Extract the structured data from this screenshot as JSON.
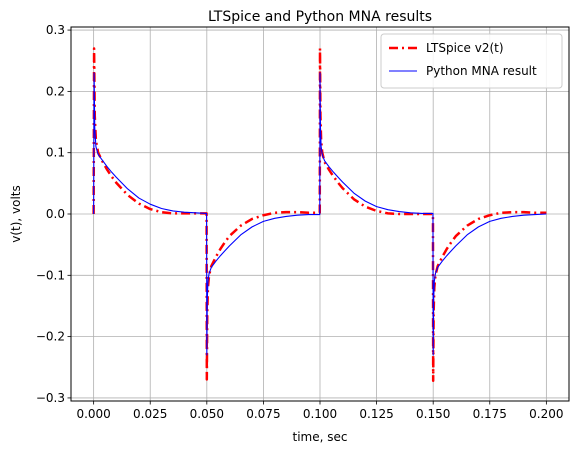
{
  "chart_data": {
    "type": "line",
    "title": "LTSpice and Python MNA results",
    "xlabel": "time, sec",
    "ylabel": "v(t), volts",
    "xlim": [
      -0.01,
      0.21
    ],
    "ylim": [
      -0.305,
      0.305
    ],
    "xticks": [
      0.0,
      0.025,
      0.05,
      0.075,
      0.1,
      0.125,
      0.15,
      0.175,
      0.2
    ],
    "xtick_labels": [
      "0.000",
      "0.025",
      "0.050",
      "0.075",
      "0.100",
      "0.125",
      "0.150",
      "0.175",
      "0.200"
    ],
    "yticks": [
      -0.3,
      -0.2,
      -0.1,
      0.0,
      0.1,
      0.2,
      0.3
    ],
    "ytick_labels": [
      "−0.3",
      "−0.2",
      "−0.1",
      "0.0",
      "0.1",
      "0.2",
      "0.3"
    ],
    "grid": true,
    "legend_position": "top-right",
    "series": [
      {
        "name": "LTSpice v2(t)",
        "color": "#ff0000",
        "style": "dashdot",
        "x": [
          0.0,
          0.0002,
          0.0005,
          0.001,
          0.002,
          0.004,
          0.006,
          0.008,
          0.01,
          0.015,
          0.02,
          0.025,
          0.03,
          0.035,
          0.04,
          0.045,
          0.0499,
          0.05,
          0.0502,
          0.0505,
          0.051,
          0.052,
          0.054,
          0.056,
          0.058,
          0.06,
          0.065,
          0.07,
          0.075,
          0.08,
          0.085,
          0.09,
          0.095,
          0.0999,
          0.1,
          0.1002,
          0.1005,
          0.101,
          0.102,
          0.104,
          0.106,
          0.108,
          0.11,
          0.115,
          0.12,
          0.125,
          0.13,
          0.135,
          0.14,
          0.145,
          0.1499,
          0.15,
          0.1502,
          0.1505,
          0.151,
          0.152,
          0.154,
          0.156,
          0.158,
          0.16,
          0.165,
          0.17,
          0.175,
          0.18,
          0.185,
          0.19,
          0.195,
          0.2
        ],
        "y": [
          0.0,
          0.27,
          0.16,
          0.12,
          0.1,
          0.085,
          0.072,
          0.061,
          0.051,
          0.031,
          0.017,
          0.008,
          0.003,
          0.001,
          0.001,
          0.001,
          0.001,
          -0.27,
          -0.16,
          -0.12,
          -0.1,
          -0.085,
          -0.07,
          -0.057,
          -0.046,
          -0.036,
          -0.019,
          -0.008,
          -0.002,
          0.002,
          0.003,
          0.003,
          0.002,
          0.002,
          0.27,
          0.16,
          0.12,
          0.1,
          0.085,
          0.072,
          0.061,
          0.051,
          0.042,
          0.024,
          0.012,
          0.005,
          0.001,
          0.0,
          0.0,
          0.0,
          0.0,
          -0.272,
          -0.16,
          -0.12,
          -0.1,
          -0.085,
          -0.07,
          -0.057,
          -0.046,
          -0.036,
          -0.019,
          -0.008,
          -0.002,
          0.002,
          0.003,
          0.003,
          0.002,
          0.002
        ]
      },
      {
        "name": "Python MNA result",
        "color": "#0000ff",
        "style": "solid",
        "x": [
          0.0,
          0.0002,
          0.0005,
          0.001,
          0.002,
          0.004,
          0.006,
          0.008,
          0.01,
          0.015,
          0.02,
          0.025,
          0.03,
          0.035,
          0.04,
          0.045,
          0.0499,
          0.05,
          0.0502,
          0.0505,
          0.051,
          0.052,
          0.054,
          0.056,
          0.058,
          0.06,
          0.065,
          0.07,
          0.075,
          0.08,
          0.085,
          0.09,
          0.095,
          0.0999,
          0.1,
          0.1002,
          0.1005,
          0.101,
          0.102,
          0.104,
          0.106,
          0.108,
          0.11,
          0.115,
          0.12,
          0.125,
          0.13,
          0.135,
          0.14,
          0.145,
          0.1499,
          0.15,
          0.1502,
          0.1505,
          0.151,
          0.152,
          0.154,
          0.156,
          0.158,
          0.16,
          0.165,
          0.17,
          0.175,
          0.18,
          0.185,
          0.19,
          0.195,
          0.2
        ],
        "y": [
          0.0,
          0.23,
          0.14,
          0.11,
          0.097,
          0.087,
          0.077,
          0.068,
          0.06,
          0.041,
          0.026,
          0.016,
          0.009,
          0.005,
          0.003,
          0.002,
          0.001,
          -0.23,
          -0.14,
          -0.11,
          -0.097,
          -0.087,
          -0.077,
          -0.068,
          -0.06,
          -0.052,
          -0.034,
          -0.021,
          -0.012,
          -0.007,
          -0.004,
          -0.002,
          -0.001,
          -0.001,
          0.23,
          0.14,
          0.11,
          0.097,
          0.087,
          0.077,
          0.068,
          0.06,
          0.052,
          0.034,
          0.021,
          0.012,
          0.007,
          0.004,
          0.002,
          0.001,
          0.001,
          -0.23,
          -0.14,
          -0.11,
          -0.097,
          -0.087,
          -0.077,
          -0.068,
          -0.06,
          -0.052,
          -0.034,
          -0.021,
          -0.012,
          -0.007,
          -0.004,
          -0.002,
          -0.001,
          0.0
        ]
      }
    ]
  }
}
